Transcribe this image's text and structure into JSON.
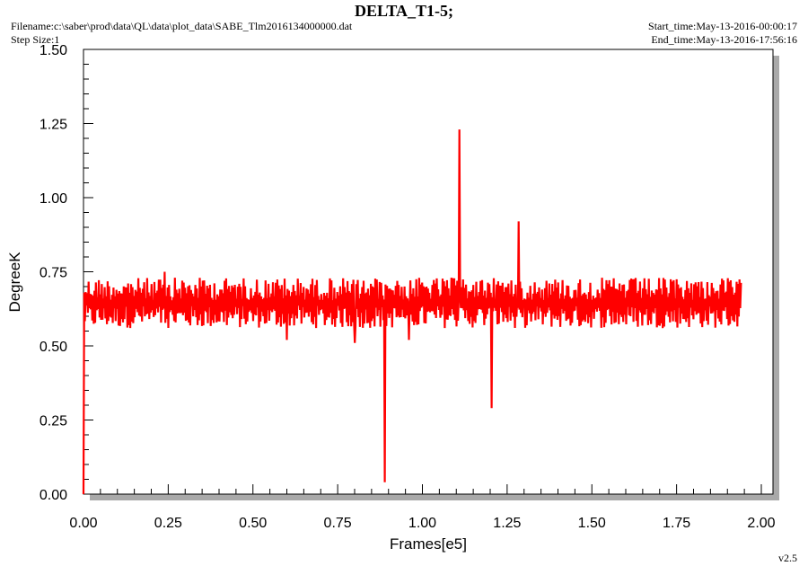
{
  "header": {
    "title": "DELTA_T1-5;",
    "filename": "Filename:c:\\saber\\prod\\data\\QL\\data\\plot_data\\SABE_Tlm2016134000000.dat",
    "step_size": "Step Size:1",
    "start_time": "Start_time:May-13-2016-00:00:17",
    "end_time": "End_time:May-13-2016-17:56:16"
  },
  "footer": {
    "version": "v2.5"
  },
  "colors": {
    "series": "#ff0000",
    "frame": "#000000",
    "shadow": "#a9a9a9",
    "background": "#ffffff"
  },
  "chart_data": {
    "type": "line",
    "title": "DELTA_T1-5;",
    "xlabel": "Frames[e5]",
    "ylabel": "DegreeK",
    "xlim": [
      0,
      2.0
    ],
    "ylim": [
      0,
      1.5
    ],
    "x_ticks": [
      "0.00",
      "0.25",
      "0.50",
      "0.75",
      "1.00",
      "1.25",
      "1.50",
      "1.75",
      "2.00"
    ],
    "y_ticks": [
      "0.00",
      "0.25",
      "0.50",
      "0.75",
      "1.00",
      "1.25",
      "1.50"
    ],
    "grid": false,
    "legend": "none",
    "series": [
      {
        "color": "#ff0000",
        "x_range": [
          0,
          1.94
        ],
        "band": {
          "low": 0.56,
          "high": 0.73,
          "mean": 0.64
        },
        "spikes": [
          {
            "x": 0.0,
            "y": 0.0
          },
          {
            "x": 0.89,
            "y": 0.04
          },
          {
            "x": 1.11,
            "y": 1.23
          },
          {
            "x": 1.205,
            "y": 0.29
          },
          {
            "x": 1.285,
            "y": 0.92
          },
          {
            "x": 0.6,
            "y": 0.75
          },
          {
            "x": 0.24,
            "y": 0.75
          },
          {
            "x": 0.6,
            "y": 0.52
          },
          {
            "x": 0.8,
            "y": 0.51
          },
          {
            "x": 0.96,
            "y": 0.52
          }
        ]
      }
    ]
  }
}
